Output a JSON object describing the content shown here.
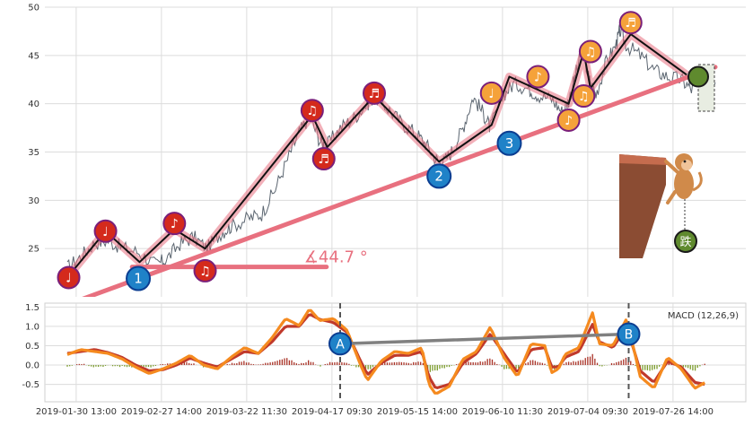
{
  "colors": {
    "price_line": "#5b6570",
    "trend": "#e8707f",
    "zigzag": "#111111",
    "zigzag_glow": "#d9a7c7",
    "red_marker": "#d42a1c",
    "orange_marker": "#f5a23a",
    "blue_marker": "#1f82c8",
    "green_marker": "#5f8a2e",
    "macd_fast": "#f58a1f",
    "macd_slow": "#c0392b",
    "hist_pos": "#a93226",
    "hist_neg": "#7a9a2a",
    "divergence": "#808080",
    "grid": "#dcdcdc",
    "panel_border": "#cfcfcf"
  },
  "chart_data": [
    {
      "type": "line",
      "panel": "price",
      "ylim": [
        20,
        50
      ],
      "yticks": [
        "25",
        "30",
        "35",
        "40",
        "45",
        "50"
      ],
      "grid": true,
      "price_path": [
        [
          0.0,
          23.0
        ],
        [
          2.0,
          24.2
        ],
        [
          4.0,
          25.6
        ],
        [
          6.0,
          25.8
        ],
        [
          8.0,
          25.1
        ],
        [
          10.5,
          24.6
        ],
        [
          13.0,
          23.3
        ],
        [
          14.5,
          23.9
        ],
        [
          16.5,
          25.5
        ],
        [
          18.5,
          26.2
        ],
        [
          20.5,
          25.0
        ],
        [
          22.5,
          26.6
        ],
        [
          24.0,
          27.3
        ],
        [
          26.5,
          28.1
        ],
        [
          28.5,
          28.6
        ],
        [
          30.5,
          31.2
        ],
        [
          32.5,
          34.6
        ],
        [
          34.0,
          37.0
        ],
        [
          35.5,
          38.7
        ],
        [
          37.0,
          36.2
        ],
        [
          38.0,
          35.6
        ],
        [
          40.0,
          37.5
        ],
        [
          42.0,
          38.5
        ],
        [
          44.0,
          40.0
        ],
        [
          45.0,
          40.8
        ],
        [
          47.0,
          39.5
        ],
        [
          49.0,
          38.0
        ],
        [
          51.0,
          37.0
        ],
        [
          52.5,
          35.9
        ],
        [
          54.0,
          34.3
        ],
        [
          55.0,
          33.8
        ],
        [
          56.5,
          35.2
        ],
        [
          58.0,
          37.5
        ],
        [
          59.5,
          40.7
        ],
        [
          61.0,
          39.0
        ],
        [
          62.0,
          37.5
        ],
        [
          64.0,
          41.0
        ],
        [
          65.5,
          42.1
        ],
        [
          67.5,
          41.6
        ],
        [
          69.0,
          40.9
        ],
        [
          71.0,
          40.5
        ],
        [
          72.5,
          39.2
        ],
        [
          73.5,
          40.3
        ],
        [
          74.5,
          43.0
        ],
        [
          75.5,
          45.5
        ],
        [
          76.5,
          42.5
        ],
        [
          77.5,
          40.9
        ],
        [
          79.0,
          44.3
        ],
        [
          80.5,
          46.2
        ],
        [
          81.0,
          47.6
        ],
        [
          82.0,
          46.0
        ],
        [
          84.0,
          45.0
        ],
        [
          86.0,
          43.5
        ],
        [
          88.0,
          42.8
        ],
        [
          90.0,
          42.5
        ],
        [
          91.5,
          41.5
        ],
        [
          93.0,
          42.6
        ],
        [
          95.0,
          42.2
        ]
      ],
      "zigzag": [
        [
          0.0,
          22.0
        ],
        [
          5.6,
          26.8
        ],
        [
          10.6,
          23.6
        ],
        [
          15.7,
          27.0
        ],
        [
          20.2,
          25.0
        ],
        [
          35.9,
          38.8
        ],
        [
          38.1,
          35.5
        ],
        [
          45.0,
          40.8
        ],
        [
          54.5,
          34.0
        ],
        [
          62.2,
          37.8
        ],
        [
          64.8,
          42.8
        ],
        [
          73.5,
          40.0
        ],
        [
          75.7,
          45.4
        ],
        [
          76.7,
          41.6
        ],
        [
          82.6,
          47.2
        ],
        [
          90.8,
          43.0
        ]
      ],
      "trendline": [
        [
          0.0,
          19.2
        ],
        [
          95.0,
          43.8
        ]
      ],
      "angle_line": [
        [
          9.5,
          23.1
        ],
        [
          38.0,
          23.1
        ]
      ],
      "angle_label": "∡44.7 °",
      "markers": [
        {
          "symbol": "♩",
          "color": "red",
          "x": 0.2,
          "y": 22.0
        },
        {
          "symbol": "♩",
          "color": "red",
          "x": 5.6,
          "y": 26.8
        },
        {
          "symbol": "1",
          "color": "blue",
          "x": 10.4,
          "y": 21.9
        },
        {
          "symbol": "♪",
          "color": "red",
          "x": 15.7,
          "y": 27.6
        },
        {
          "symbol": "♫",
          "color": "red",
          "x": 20.2,
          "y": 22.7
        },
        {
          "symbol": "♫",
          "color": "red",
          "x": 35.9,
          "y": 39.3
        },
        {
          "symbol": "♬",
          "color": "red",
          "x": 37.6,
          "y": 34.3
        },
        {
          "symbol": "♬",
          "color": "red",
          "x": 45.0,
          "y": 41.1
        },
        {
          "symbol": "2",
          "color": "blue",
          "x": 54.5,
          "y": 32.5
        },
        {
          "symbol": "♩",
          "color": "orange",
          "x": 62.2,
          "y": 41.1
        },
        {
          "symbol": "3",
          "color": "blue",
          "x": 64.8,
          "y": 35.9
        },
        {
          "symbol": "♪",
          "color": "orange",
          "x": 69.0,
          "y": 42.8
        },
        {
          "symbol": "♪",
          "color": "orange",
          "x": 73.5,
          "y": 38.3
        },
        {
          "symbol": "♫",
          "color": "orange",
          "x": 75.7,
          "y": 40.8
        },
        {
          "symbol": "♫",
          "color": "orange",
          "x": 76.7,
          "y": 45.4
        },
        {
          "symbol": "♬",
          "color": "orange",
          "x": 82.6,
          "y": 48.4
        },
        {
          "symbol": "",
          "color": "green",
          "x": 92.5,
          "y": 42.8
        }
      ]
    },
    {
      "type": "line",
      "panel": "macd",
      "legend": "MACD (12,26,9)",
      "ylim": [
        -0.95,
        1.6
      ],
      "yticks": [
        "1.5",
        "1.0",
        "0.5",
        "0.0",
        "-0.5"
      ],
      "grid": true,
      "series": [
        {
          "role": "fast",
          "points": [
            [
              0,
              0.27
            ],
            [
              2,
              0.4
            ],
            [
              4,
              0.35
            ],
            [
              6,
              0.3
            ],
            [
              8,
              0.16
            ],
            [
              10,
              -0.05
            ],
            [
              12,
              -0.22
            ],
            [
              14,
              -0.1
            ],
            [
              16,
              0.05
            ],
            [
              18,
              0.25
            ],
            [
              20,
              0.0
            ],
            [
              22,
              -0.1
            ],
            [
              24,
              0.2
            ],
            [
              26,
              0.45
            ],
            [
              28,
              0.3
            ],
            [
              30,
              0.7
            ],
            [
              32,
              1.2
            ],
            [
              34,
              1.02
            ],
            [
              35.5,
              1.45
            ],
            [
              37,
              1.15
            ],
            [
              39,
              1.2
            ],
            [
              41,
              0.9
            ],
            [
              43,
              0.0
            ],
            [
              44,
              -0.4
            ],
            [
              46,
              0.1
            ],
            [
              48,
              0.35
            ],
            [
              50,
              0.3
            ],
            [
              52,
              0.45
            ],
            [
              53,
              -0.5
            ],
            [
              54,
              -0.75
            ],
            [
              56,
              -0.55
            ],
            [
              58,
              0.15
            ],
            [
              60,
              0.35
            ],
            [
              62,
              0.98
            ],
            [
              64,
              0.2
            ],
            [
              66,
              -0.3
            ],
            [
              68,
              0.55
            ],
            [
              70,
              0.5
            ],
            [
              71,
              -0.2
            ],
            [
              72,
              -0.1
            ],
            [
              73,
              0.28
            ],
            [
              75,
              0.45
            ],
            [
              77,
              1.35
            ],
            [
              78,
              0.55
            ],
            [
              80,
              0.5
            ],
            [
              82,
              1.2
            ],
            [
              84,
              -0.3
            ],
            [
              86,
              -0.6
            ],
            [
              88,
              0.2
            ],
            [
              90,
              -0.1
            ],
            [
              92,
              -0.6
            ],
            [
              93.5,
              -0.45
            ]
          ]
        },
        {
          "role": "slow",
          "points": [
            [
              0,
              0.3
            ],
            [
              2,
              0.35
            ],
            [
              4,
              0.4
            ],
            [
              6,
              0.32
            ],
            [
              8,
              0.2
            ],
            [
              10,
              0.0
            ],
            [
              12,
              -0.15
            ],
            [
              14,
              -0.12
            ],
            [
              16,
              0.0
            ],
            [
              18,
              0.18
            ],
            [
              20,
              0.05
            ],
            [
              22,
              -0.05
            ],
            [
              24,
              0.15
            ],
            [
              26,
              0.35
            ],
            [
              28,
              0.3
            ],
            [
              30,
              0.6
            ],
            [
              32,
              1.0
            ],
            [
              34,
              1.0
            ],
            [
              35.5,
              1.32
            ],
            [
              37,
              1.18
            ],
            [
              39,
              1.1
            ],
            [
              41,
              0.85
            ],
            [
              43,
              0.1
            ],
            [
              44,
              -0.25
            ],
            [
              46,
              0.05
            ],
            [
              48,
              0.25
            ],
            [
              50,
              0.25
            ],
            [
              52,
              0.35
            ],
            [
              53,
              -0.3
            ],
            [
              54,
              -0.6
            ],
            [
              56,
              -0.5
            ],
            [
              58,
              0.05
            ],
            [
              60,
              0.3
            ],
            [
              62,
              0.8
            ],
            [
              64,
              0.3
            ],
            [
              66,
              -0.2
            ],
            [
              68,
              0.4
            ],
            [
              70,
              0.45
            ],
            [
              71,
              -0.05
            ],
            [
              72,
              -0.05
            ],
            [
              73,
              0.2
            ],
            [
              75,
              0.35
            ],
            [
              77,
              1.05
            ],
            [
              78,
              0.6
            ],
            [
              80,
              0.45
            ],
            [
              82,
              1.0
            ],
            [
              84,
              -0.15
            ],
            [
              86,
              -0.45
            ],
            [
              88,
              0.1
            ],
            [
              90,
              -0.05
            ],
            [
              92,
              -0.45
            ],
            [
              93.5,
              -0.5
            ]
          ]
        }
      ],
      "vlines_x": [
        40.0,
        82.3
      ],
      "divergence": [
        [
          40.0,
          0.55
        ],
        [
          82.3,
          0.8
        ]
      ],
      "divergence_labels": [
        "A",
        "B"
      ]
    }
  ],
  "x_axis": {
    "tick_labels": [
      "2019-01-30 13:00",
      "2019-02-27 14:00",
      "2019-03-22 11:30",
      "2019-04-17 09:30",
      "2019-05-15 14:00",
      "2019-06-10 11:30",
      "2019-07-04 09:30",
      "2019-07-26 14:00"
    ]
  }
}
